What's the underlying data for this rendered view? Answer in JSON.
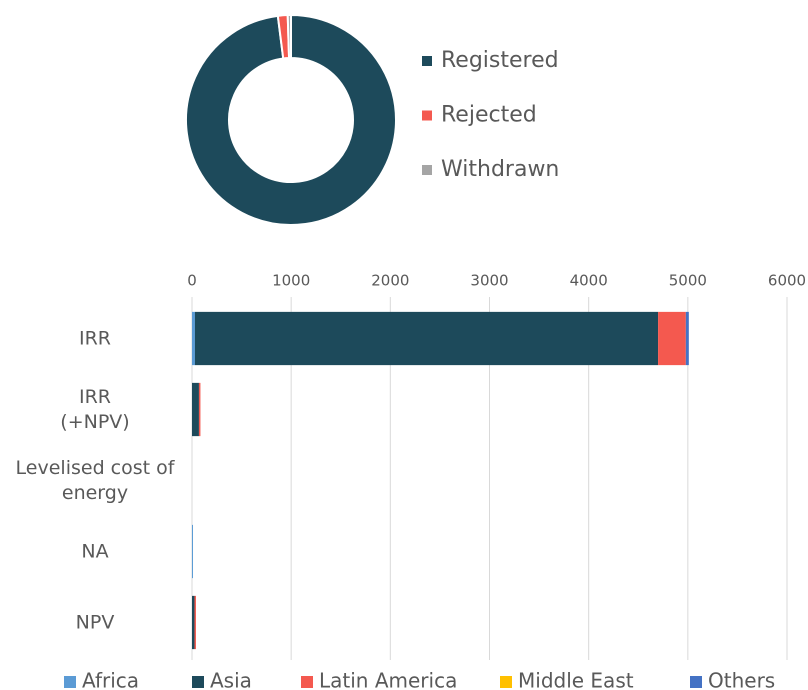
{
  "chart_data": [
    {
      "type": "donut",
      "categories": [
        "Registered",
        "Rejected",
        "Withdrawn"
      ],
      "values": [
        98,
        1.5,
        0.5
      ],
      "colors": [
        "#1d4a5b",
        "#f4594f",
        "#a5a5a5"
      ],
      "legend": "right"
    },
    {
      "type": "stacked-barh",
      "categories": [
        "IRR",
        "IRR\n(+NPV)",
        "Levelised cost of\nenergy",
        "NA",
        "NPV"
      ],
      "series": [
        {
          "name": "Africa",
          "color": "#5b9bd5",
          "values": [
            30,
            0,
            0,
            10,
            0
          ]
        },
        {
          "name": "Asia",
          "color": "#1d4a5b",
          "values": [
            4670,
            70,
            0,
            0,
            25
          ]
        },
        {
          "name": "Latin America",
          "color": "#f4594f",
          "values": [
            280,
            15,
            0,
            0,
            15
          ]
        },
        {
          "name": "Middle East",
          "color": "#ffc000",
          "values": [
            0,
            0,
            0,
            0,
            0
          ]
        },
        {
          "name": "Others",
          "color": "#4472c4",
          "values": [
            30,
            0,
            0,
            0,
            0
          ]
        }
      ],
      "xlim": [
        0,
        6000
      ],
      "xticks": [
        0,
        1000,
        2000,
        3000,
        4000,
        5000,
        6000
      ],
      "grid": true,
      "legend": "bottom"
    }
  ]
}
